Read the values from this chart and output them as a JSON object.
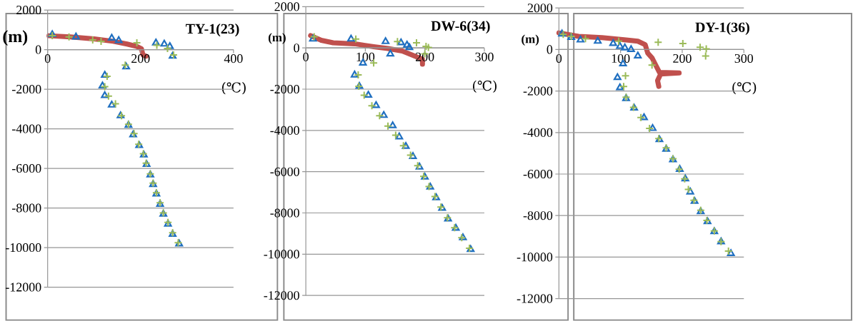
{
  "chart_data": [
    {
      "type": "scatter",
      "title": "TY-1(23)",
      "xlabel": "(℃)",
      "ylabel": "(m)",
      "xlim": [
        0,
        400
      ],
      "ylim": [
        -12000,
        2000
      ],
      "xticks": [
        0,
        200,
        400
      ],
      "yticks": [
        -12000,
        -10000,
        -8000,
        -6000,
        -4000,
        -2000,
        0,
        2000
      ],
      "grid": "y",
      "series": [
        {
          "type": "line",
          "color": "#c0504d",
          "marker": "none",
          "x": [
            3,
            49,
            100,
            141,
            171,
            192,
            202,
            205,
            212
          ],
          "values": [
            700,
            640,
            540,
            420,
            280,
            160,
            40,
            -270,
            -330
          ]
        },
        {
          "color": "#1f6fc0",
          "marker": "triangle",
          "x": [
            10,
            61,
            138,
            153,
            233,
            251,
            263,
            269,
            169,
            123,
            118,
            123,
            138,
            157,
            174,
            184,
            197,
            207,
            213,
            221,
            227,
            234,
            242,
            249,
            259,
            269,
            283
          ],
          "values": [
            760,
            640,
            580,
            460,
            340,
            280,
            160,
            -330,
            -870,
            -1290,
            -1830,
            -2320,
            -2800,
            -3340,
            -3820,
            -4300,
            -4840,
            -5320,
            -5800,
            -6330,
            -6810,
            -7290,
            -7810,
            -8310,
            -8810,
            -9330,
            -9810
          ]
        },
        {
          "color": "#9bbb59",
          "marker": "cross",
          "x": [
            10,
            46,
            97,
            115,
            192,
            235,
            258,
            271,
            167,
            128,
            123,
            131,
            146,
            159,
            174,
            186,
            196,
            206,
            212,
            221,
            227,
            234,
            242,
            249,
            259,
            269,
            281
          ],
          "values": [
            700,
            640,
            490,
            420,
            340,
            220,
            60,
            -270,
            -780,
            -1350,
            -1870,
            -2350,
            -2740,
            -3340,
            -3770,
            -4240,
            -4780,
            -5260,
            -5740,
            -6280,
            -6750,
            -7230,
            -7740,
            -8250,
            -8730,
            -9250,
            -9750
          ]
        }
      ]
    },
    {
      "type": "scatter",
      "title": "DW-6(34)",
      "xlabel": "(℃)",
      "ylabel": "(m)",
      "xlim": [
        0,
        300
      ],
      "ylim": [
        -12000,
        2000
      ],
      "xticks": [
        0,
        100,
        200,
        300
      ],
      "yticks": [
        -12000,
        -10000,
        -8000,
        -6000,
        -4000,
        -2000,
        0,
        2000
      ],
      "grid": "y",
      "series": [
        {
          "type": "line",
          "color": "#c0504d",
          "marker": "none",
          "x": [
            8,
            26,
            46,
            82,
            114,
            138,
            162,
            182,
            196,
            196
          ],
          "values": [
            600,
            370,
            250,
            200,
            60,
            -30,
            -150,
            -380,
            -550,
            -790
          ]
        },
        {
          "color": "#1f6fc0",
          "marker": "triangle",
          "x": [
            12,
            76,
            134,
            142,
            160,
            170,
            174,
            96,
            82,
            90,
            105,
            118,
            131,
            146,
            157,
            168,
            180,
            191,
            200,
            209,
            219,
            229,
            239,
            252,
            264,
            277
          ],
          "values": [
            430,
            430,
            310,
            -290,
            250,
            140,
            20,
            -730,
            -1310,
            -1860,
            -2290,
            -2790,
            -3270,
            -3770,
            -4310,
            -4770,
            -5260,
            -5770,
            -6260,
            -6740,
            -7260,
            -7770,
            -8290,
            -8740,
            -9200,
            -9770
          ]
        },
        {
          "color": "#9bbb59",
          "marker": "cross",
          "x": [
            14,
            84,
            114,
            154,
            186,
            202,
            206,
            200,
            88,
            89,
            98,
            111,
            124,
            138,
            151,
            164,
            176,
            188,
            198,
            207,
            217,
            227,
            238,
            250,
            262,
            275
          ],
          "values": [
            540,
            430,
            -730,
            310,
            250,
            80,
            20,
            -290,
            -1310,
            -1860,
            -2290,
            -2800,
            -3290,
            -3790,
            -4230,
            -4740,
            -5200,
            -5710,
            -6230,
            -6720,
            -7200,
            -7710,
            -8230,
            -8720,
            -9200,
            -9710
          ]
        }
      ]
    },
    {
      "type": "scatter",
      "title": "DY-1(36)",
      "xlabel": "(℃)",
      "ylabel": "(m)",
      "xlim": [
        0,
        300
      ],
      "ylim": [
        -12000,
        2000
      ],
      "xticks": [
        0,
        100,
        200,
        300
      ],
      "yticks": [
        -12000,
        -10000,
        -8000,
        -6000,
        -4000,
        -2000,
        0,
        2000
      ],
      "grid": "y",
      "series": [
        {
          "type": "line",
          "color": "#c0504d",
          "marker": "none",
          "x": [
            0,
            32,
            70,
            109,
            128,
            140,
            144,
            151,
            157,
            163,
            195,
            165,
            160,
            162
          ],
          "values": [
            800,
            630,
            570,
            460,
            400,
            230,
            -170,
            -400,
            -750,
            -1100,
            -1130,
            -1180,
            -1500,
            -1780
          ]
        },
        {
          "color": "#1f6fc0",
          "marker": "triangle",
          "x": [
            5,
            20,
            35,
            63,
            88,
            99,
            107,
            117,
            128,
            104,
            95,
            99,
            109,
            122,
            138,
            152,
            163,
            174,
            185,
            196,
            205,
            213,
            220,
            230,
            241,
            252,
            263,
            279
          ],
          "values": [
            750,
            580,
            460,
            400,
            290,
            150,
            80,
            0,
            -310,
            -690,
            -1350,
            -1840,
            -2360,
            -2820,
            -3280,
            -3800,
            -4340,
            -4800,
            -5310,
            -5770,
            -6230,
            -6860,
            -7310,
            -7810,
            -8290,
            -8770,
            -9260,
            -9830
          ]
        },
        {
          "color": "#9bbb59",
          "marker": "cross",
          "x": [
            7,
            20,
            43,
            97,
            161,
            201,
            229,
            239,
            238,
            151,
            108,
            105,
            109,
            121,
            133,
            147,
            162,
            174,
            185,
            195,
            204,
            210,
            219,
            230,
            240,
            252,
            263,
            275
          ],
          "values": [
            730,
            630,
            520,
            400,
            350,
            290,
            110,
            30,
            -310,
            -750,
            -1270,
            -1780,
            -2300,
            -2790,
            -3280,
            -3800,
            -4290,
            -4740,
            -5260,
            -5770,
            -6230,
            -6740,
            -7260,
            -7740,
            -8230,
            -8740,
            -9260,
            -9710
          ]
        }
      ]
    }
  ]
}
